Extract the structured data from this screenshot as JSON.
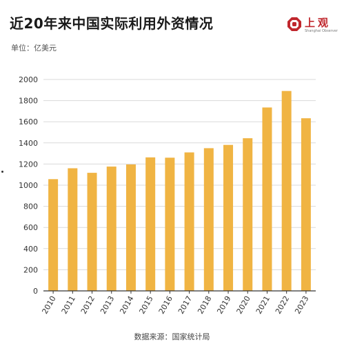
{
  "header": {
    "title": "近20年来中国实际利用外资情况",
    "unit": "单位：亿美元"
  },
  "logo": {
    "text": "上观",
    "subtitle": "Shanghai Observer"
  },
  "footer": {
    "source": "数据来源：国家统计局"
  },
  "colors": {
    "bar": "#F0B443",
    "grid": "#d9d9d9",
    "axis": "#333333",
    "brand": "#c0272d"
  },
  "chart_data": {
    "type": "bar",
    "categories": [
      "2010",
      "2011",
      "2012",
      "2013",
      "2014",
      "2015",
      "2016",
      "2017",
      "2018",
      "2019",
      "2020",
      "2021",
      "2022",
      "2023"
    ],
    "values": [
      1057,
      1160,
      1117,
      1176,
      1196,
      1263,
      1260,
      1310,
      1350,
      1381,
      1444,
      1735,
      1891,
      1633
    ],
    "ylim": [
      0,
      2000
    ],
    "yticks": [
      0,
      200,
      400,
      600,
      800,
      1000,
      1200,
      1400,
      1600,
      1800,
      2000
    ],
    "grid": true,
    "xlabel": "",
    "ylabel": ""
  }
}
